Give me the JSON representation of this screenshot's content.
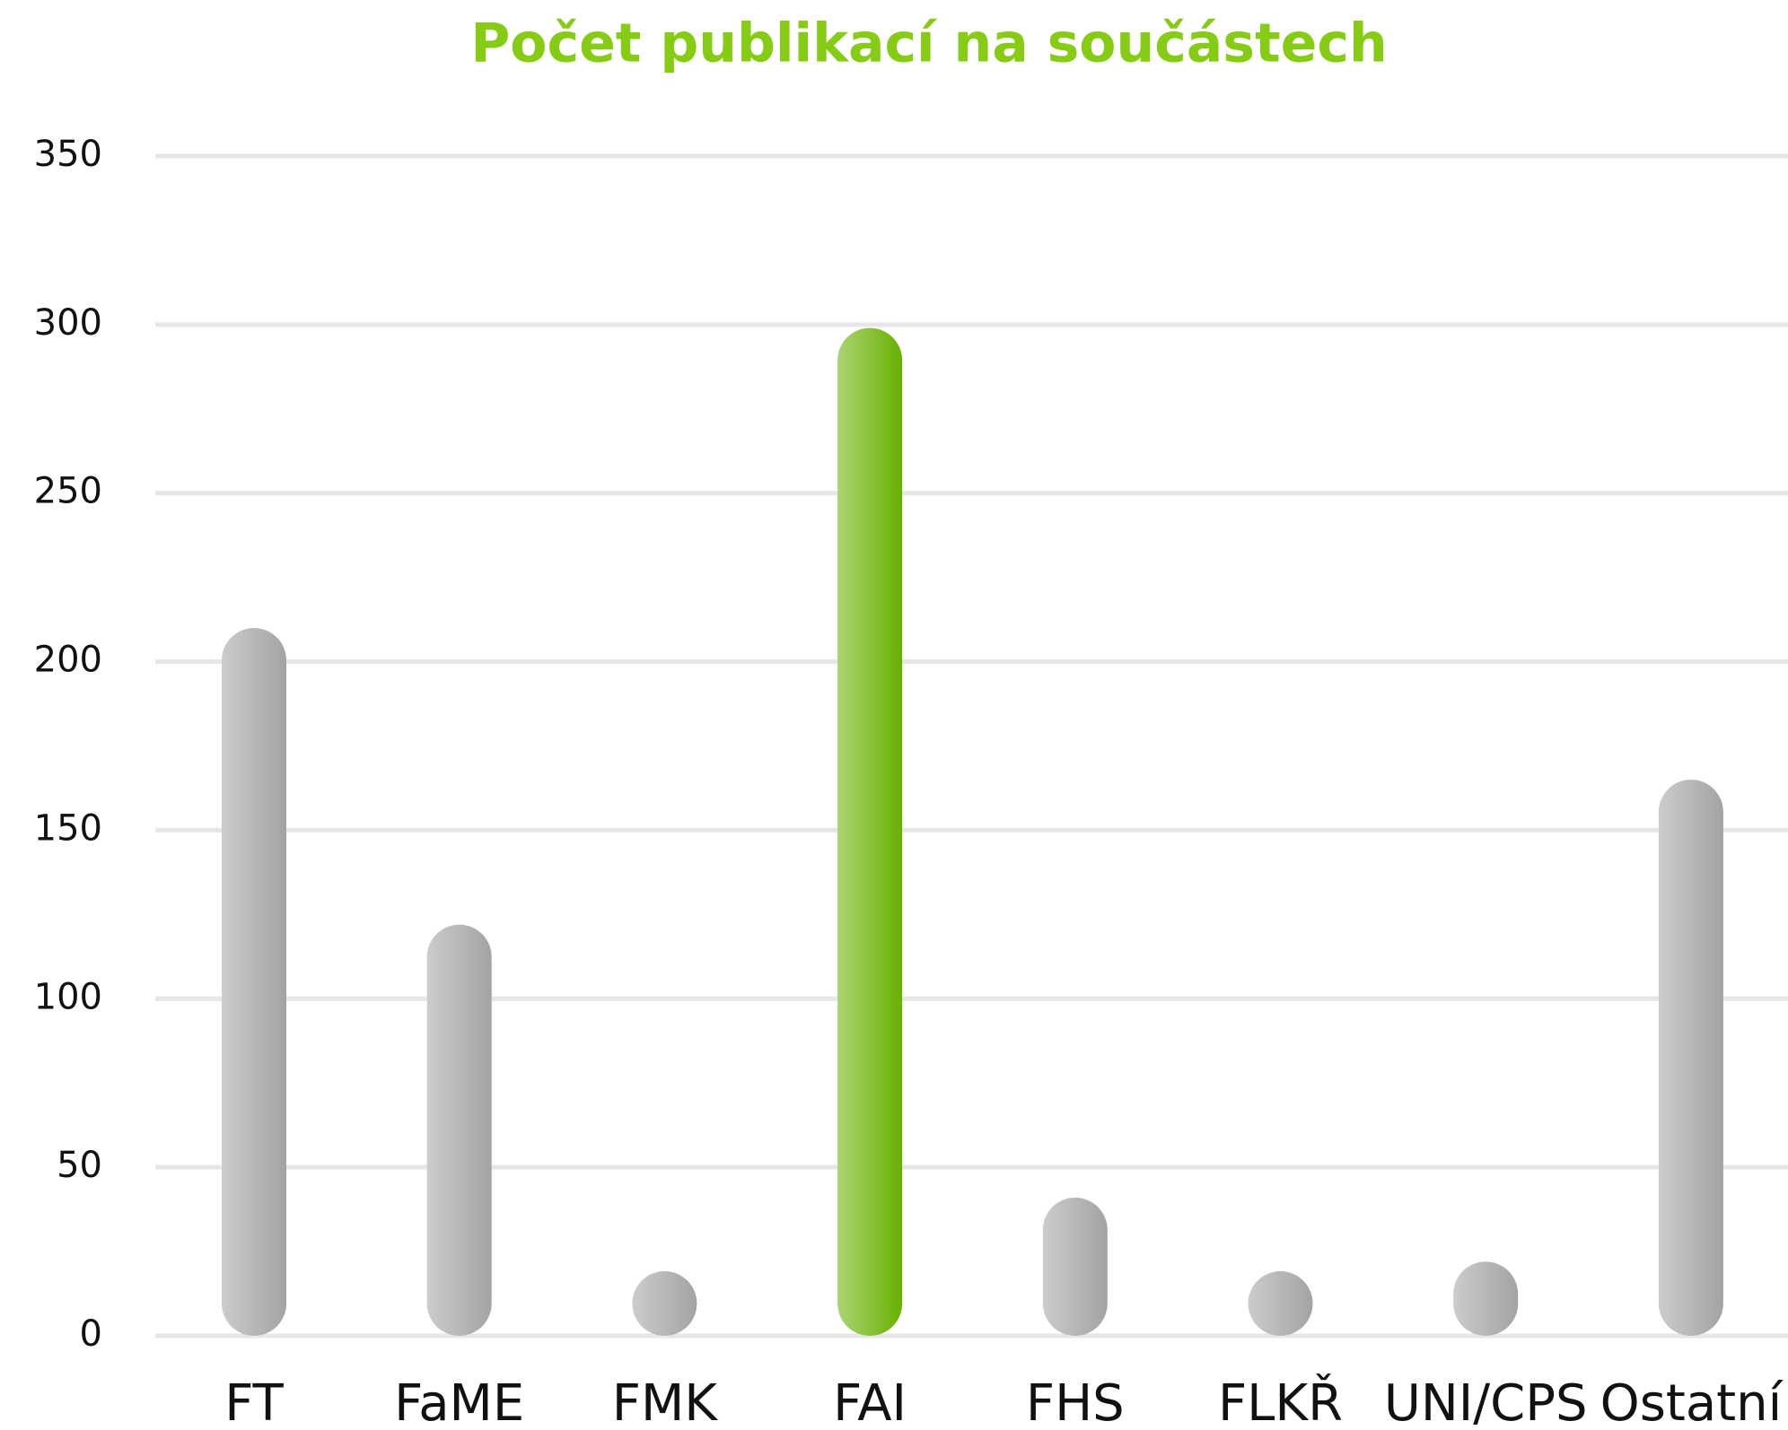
{
  "chart_data": {
    "type": "bar",
    "title": "Počet publikací na součástech",
    "categories": [
      "FT",
      "FaME",
      "FMK",
      "FAI",
      "FHS",
      "FLKŘ",
      "UNI/CPS",
      "Ostatní"
    ],
    "values": [
      210,
      122,
      19,
      299,
      41,
      19,
      22,
      165
    ],
    "colors": [
      "#a3a3a3",
      "#a3a3a3",
      "#a3a3a3",
      "#67b000",
      "#a3a3a3",
      "#a3a3a3",
      "#a3a3a3",
      "#a3a3a3"
    ],
    "ylim": [
      0,
      350
    ],
    "yticks": [
      0,
      50,
      100,
      150,
      200,
      250,
      300,
      350
    ],
    "grid": true
  }
}
